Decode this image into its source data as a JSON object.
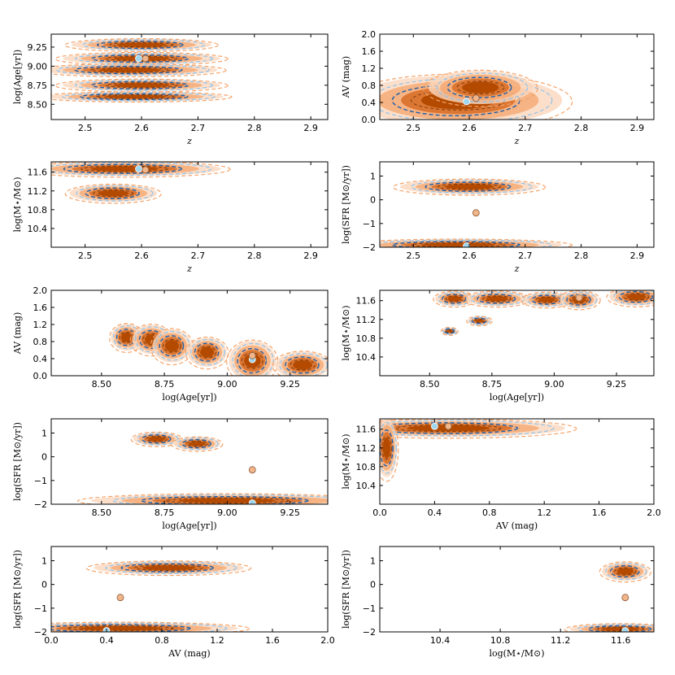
{
  "colors": {
    "orange_dark": "#b34a00",
    "orange_mid": "#d9702a",
    "orange_light": "#f4a46b",
    "orange_pale": "#fbd7bd",
    "blue_dark": "#1f5fa8",
    "blue_light": "#8fc3ec",
    "blue_pale": "#cfe4f5",
    "marker_blue": "#9fd6ee",
    "marker_orange": "#f1b58a"
  },
  "chart_data": [
    {
      "type": "contour",
      "xlabel": "z",
      "ylabel": "log(Age[yr])",
      "xlim": [
        2.44,
        2.93
      ],
      "ylim": [
        8.3,
        9.42
      ],
      "xticks": [
        "2.5",
        "2.6",
        "2.7",
        "2.8",
        "2.9"
      ],
      "yticks": [
        "8.50",
        "8.75",
        "9.00",
        "9.25"
      ],
      "points": [
        {
          "x": 2.595,
          "y": 9.1,
          "series": "blue"
        },
        {
          "x": 2.607,
          "y": 9.1,
          "series": "orange"
        }
      ],
      "blobs": [
        {
          "x": 2.6,
          "y": 9.28,
          "rx": 0.08,
          "ry": 0.05
        },
        {
          "x": 2.6,
          "y": 9.1,
          "rx": 0.09,
          "ry": 0.05
        },
        {
          "x": 2.58,
          "y": 8.95,
          "rx": 0.1,
          "ry": 0.05
        },
        {
          "x": 2.6,
          "y": 8.75,
          "rx": 0.09,
          "ry": 0.05
        },
        {
          "x": 2.59,
          "y": 8.6,
          "rx": 0.1,
          "ry": 0.04
        }
      ]
    },
    {
      "type": "contour",
      "xlabel": "z",
      "ylabel": "AV (mag)",
      "xlim": [
        2.44,
        2.93
      ],
      "ylim": [
        0,
        2
      ],
      "xticks": [
        "2.5",
        "2.6",
        "2.7",
        "2.8",
        "2.9"
      ],
      "yticks": [
        "0.0",
        "0.4",
        "0.8",
        "1.2",
        "1.6",
        "2.0"
      ],
      "points": [
        {
          "x": 2.595,
          "y": 0.42,
          "series": "blue"
        },
        {
          "x": 2.612,
          "y": 0.5,
          "series": "orange"
        }
      ],
      "blobs": [
        {
          "x": 2.58,
          "y": 0.45,
          "rx": 0.12,
          "ry": 0.38
        },
        {
          "x": 2.62,
          "y": 0.75,
          "rx": 0.06,
          "ry": 0.25
        }
      ]
    },
    {
      "type": "contour",
      "xlabel": "z",
      "ylabel": "log(M⋆/M⊙)",
      "xlim": [
        2.44,
        2.93
      ],
      "ylim": [
        10.0,
        11.82
      ],
      "xticks": [
        "2.5",
        "2.6",
        "2.7",
        "2.8",
        "2.9"
      ],
      "yticks": [
        "10.4",
        "10.8",
        "11.2",
        "11.6"
      ],
      "points": [
        {
          "x": 2.595,
          "y": 11.67,
          "series": "blue"
        },
        {
          "x": 2.607,
          "y": 11.65,
          "series": "orange"
        }
      ],
      "blobs": [
        {
          "x": 2.57,
          "y": 11.67,
          "rx": 0.11,
          "ry": 0.1
        },
        {
          "x": 2.55,
          "y": 11.15,
          "rx": 0.05,
          "ry": 0.12
        }
      ]
    },
    {
      "type": "contour",
      "xlabel": "z",
      "ylabel": "log(SFR [M⊙/yr])",
      "xlim": [
        2.44,
        2.93
      ],
      "ylim": [
        -2,
        1.6
      ],
      "xticks": [
        "2.5",
        "2.6",
        "2.7",
        "2.8",
        "2.9"
      ],
      "yticks": [
        "−2",
        "−1",
        "0",
        "1"
      ],
      "points": [
        {
          "x": 2.612,
          "y": -0.55,
          "series": "orange"
        },
        {
          "x": 2.595,
          "y": -1.95,
          "series": "blue"
        }
      ],
      "blobs": [
        {
          "x": 2.6,
          "y": 0.55,
          "rx": 0.08,
          "ry": 0.2
        },
        {
          "x": 2.58,
          "y": -1.9,
          "rx": 0.12,
          "ry": 0.15
        }
      ]
    },
    {
      "type": "contour",
      "xlabel": "log(Age[yr])",
      "ylabel": "AV (mag)",
      "xlim": [
        8.3,
        9.4
      ],
      "ylim": [
        0,
        2
      ],
      "xticks": [
        "8.50",
        "8.75",
        "9.00",
        "9.25"
      ],
      "yticks": [
        "0.0",
        "0.4",
        "0.8",
        "1.2",
        "1.6",
        "2.0"
      ],
      "points": [
        {
          "x": 9.1,
          "y": 0.38,
          "series": "blue"
        },
        {
          "x": 9.1,
          "y": 0.47,
          "series": "orange"
        }
      ],
      "blobs": [
        {
          "x": 8.6,
          "y": 0.9,
          "rx": 0.04,
          "ry": 0.2
        },
        {
          "x": 8.7,
          "y": 0.85,
          "rx": 0.05,
          "ry": 0.22
        },
        {
          "x": 8.78,
          "y": 0.7,
          "rx": 0.05,
          "ry": 0.25
        },
        {
          "x": 8.92,
          "y": 0.55,
          "rx": 0.05,
          "ry": 0.22
        },
        {
          "x": 9.1,
          "y": 0.35,
          "rx": 0.06,
          "ry": 0.3
        },
        {
          "x": 9.3,
          "y": 0.25,
          "rx": 0.07,
          "ry": 0.2
        }
      ]
    },
    {
      "type": "contour",
      "xlabel": "log(Age[yr])",
      "ylabel": "log(M⋆/M⊙)",
      "xlim": [
        8.3,
        9.4
      ],
      "ylim": [
        10.0,
        11.82
      ],
      "xticks": [
        "8.50",
        "8.75",
        "9.00",
        "9.25"
      ],
      "yticks": [
        "10.4",
        "10.8",
        "11.2",
        "11.6"
      ],
      "points": [
        {
          "x": 9.1,
          "y": 11.67,
          "series": "blue"
        },
        {
          "x": 9.1,
          "y": 11.66,
          "series": "orange"
        }
      ],
      "blobs": [
        {
          "x": 8.6,
          "y": 11.64,
          "rx": 0.05,
          "ry": 0.1
        },
        {
          "x": 8.77,
          "y": 11.64,
          "rx": 0.08,
          "ry": 0.1
        },
        {
          "x": 8.97,
          "y": 11.62,
          "rx": 0.06,
          "ry": 0.1
        },
        {
          "x": 9.1,
          "y": 11.62,
          "rx": 0.05,
          "ry": 0.12
        },
        {
          "x": 9.33,
          "y": 11.68,
          "rx": 0.07,
          "ry": 0.12
        },
        {
          "x": 8.7,
          "y": 11.17,
          "rx": 0.03,
          "ry": 0.06
        },
        {
          "x": 8.58,
          "y": 10.95,
          "rx": 0.02,
          "ry": 0.05
        }
      ]
    },
    {
      "type": "contour",
      "xlabel": "log(Age[yr])",
      "ylabel": "log(SFR [M⊙/yr])",
      "xlim": [
        8.3,
        9.4
      ],
      "ylim": [
        -2,
        1.6
      ],
      "xticks": [
        "8.50",
        "8.75",
        "9.00",
        "9.25"
      ],
      "yticks": [
        "−2",
        "−1",
        "0",
        "1"
      ],
      "points": [
        {
          "x": 9.1,
          "y": -0.55,
          "series": "orange"
        },
        {
          "x": 9.1,
          "y": -1.95,
          "series": "blue"
        }
      ],
      "blobs": [
        {
          "x": 8.72,
          "y": 0.75,
          "rx": 0.06,
          "ry": 0.18
        },
        {
          "x": 8.88,
          "y": 0.55,
          "rx": 0.06,
          "ry": 0.18
        },
        {
          "x": 9.0,
          "y": -1.85,
          "rx": 0.35,
          "ry": 0.18
        }
      ]
    },
    {
      "type": "contour",
      "xlabel": "AV (mag)",
      "ylabel": "log(M⋆/M⊙)",
      "xlim": [
        0,
        2
      ],
      "ylim": [
        10.0,
        11.82
      ],
      "xticks": [
        "0.0",
        "0.4",
        "0.8",
        "1.2",
        "1.6",
        "2.0"
      ],
      "yticks": [
        "10.4",
        "10.8",
        "11.2",
        "11.6"
      ],
      "points": [
        {
          "x": 0.4,
          "y": 11.66,
          "series": "blue"
        },
        {
          "x": 0.5,
          "y": 11.66,
          "series": "orange"
        }
      ],
      "blobs": [
        {
          "x": 0.5,
          "y": 11.62,
          "rx": 0.55,
          "ry": 0.12
        },
        {
          "x": 0.05,
          "y": 11.2,
          "rx": 0.05,
          "ry": 0.4
        }
      ]
    },
    {
      "type": "contour",
      "xlabel": "AV (mag)",
      "ylabel": "log(SFR [M⊙/yr])",
      "xlim": [
        0,
        2
      ],
      "ylim": [
        -2,
        1.6
      ],
      "xticks": [
        "0.0",
        "0.4",
        "0.8",
        "1.2",
        "1.6",
        "2.0"
      ],
      "yticks": [
        "−2",
        "−1",
        "0",
        "1"
      ],
      "points": [
        {
          "x": 0.5,
          "y": -0.55,
          "series": "orange"
        },
        {
          "x": 0.4,
          "y": -1.95,
          "series": "blue"
        }
      ],
      "blobs": [
        {
          "x": 0.85,
          "y": 0.7,
          "rx": 0.35,
          "ry": 0.18
        },
        {
          "x": 0.5,
          "y": -1.85,
          "rx": 0.55,
          "ry": 0.16
        }
      ]
    },
    {
      "type": "contour",
      "xlabel": "log(M⋆/M⊙)",
      "ylabel": "log(SFR [M⊙/yr])",
      "xlim": [
        10.0,
        11.82
      ],
      "ylim": [
        -2,
        1.6
      ],
      "xticks": [
        "10.4",
        "10.8",
        "11.2",
        "11.6"
      ],
      "yticks": [
        "−2",
        "−1",
        "0",
        "1"
      ],
      "points": [
        {
          "x": 11.63,
          "y": -0.55,
          "series": "orange"
        },
        {
          "x": 11.63,
          "y": -1.95,
          "series": "blue"
        }
      ],
      "blobs": [
        {
          "x": 11.63,
          "y": 0.55,
          "rx": 0.1,
          "ry": 0.25
        },
        {
          "x": 11.6,
          "y": -1.88,
          "rx": 0.22,
          "ry": 0.14
        }
      ]
    }
  ]
}
